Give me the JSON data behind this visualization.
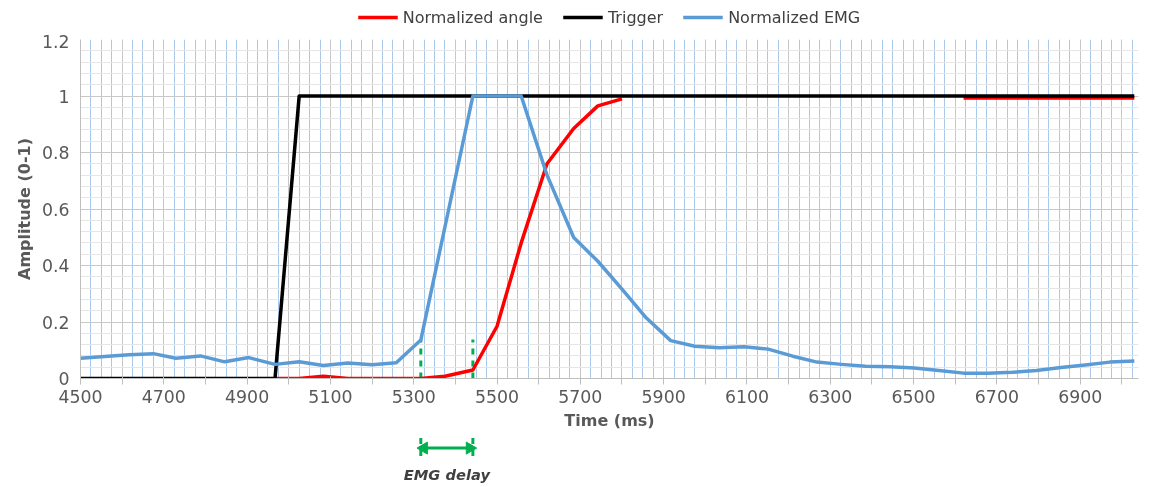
{
  "chart_data": {
    "type": "line",
    "xlabel": "Time (ms)",
    "ylabel": "Amplitude (0-1)",
    "xlim": [
      4500,
      7040
    ],
    "ylim": [
      0,
      1.2
    ],
    "xticks": [
      4500,
      {
        "value": 4600,
        "label": null
      },
      4700,
      {
        "value": 4800,
        "label": null
      },
      4900,
      {
        "value": 5000,
        "label": null
      },
      5100,
      {
        "value": 5200,
        "label": null
      },
      5300,
      {
        "value": 5400,
        "label": null
      },
      5500,
      {
        "value": 5600,
        "label": null
      },
      5700,
      {
        "value": 5800,
        "label": null
      },
      5900,
      {
        "value": 6000,
        "label": null
      },
      6100,
      {
        "value": 6200,
        "label": null
      },
      6300,
      {
        "value": 6400,
        "label": null
      },
      6500,
      {
        "value": 6600,
        "label": null
      },
      6700,
      {
        "value": 6800,
        "label": null
      },
      6900,
      {
        "value": 7000,
        "label": null
      }
    ],
    "yticks": [
      0,
      0.2,
      0.4,
      0.6,
      0.8,
      1,
      1.2
    ],
    "grid": true,
    "legend": "top",
    "line_style": "solid",
    "marker": "none",
    "series": [
      {
        "name": "Normalized angle",
        "color": "#ff0000",
        "x": [
          4967,
          5025,
          5083,
          5142,
          5200,
          5258,
          5317,
          5375,
          5442,
          5500,
          5558,
          5620,
          5684,
          5742,
          5800,
          5858,
          5917,
          6561,
          6620,
          6678,
          6737,
          6795,
          6854,
          6912,
          6971,
          7030
        ],
        "values": [
          0,
          0,
          0.008,
          0,
          0,
          0,
          0,
          0.008,
          0.03,
          0.185,
          0.48,
          0.76,
          0.885,
          0.965,
          0.99,
          null,
          null,
          null,
          0.993,
          0.993,
          0.993,
          0.993,
          0.993,
          0.993,
          0.993,
          0.993
        ]
      },
      {
        "name": "Trigger",
        "color": "#000000",
        "x": [
          4500,
          4967,
          5025,
          7030
        ],
        "values": [
          0,
          0,
          1,
          1
        ]
      },
      {
        "name": "Normalized EMG",
        "color": "#5b9bd5",
        "x": [
          4500,
          4558,
          4617,
          4675,
          4729,
          4788,
          4846,
          4904,
          4967,
          5025,
          5083,
          5142,
          5200,
          5258,
          5317,
          5442,
          5500,
          5558,
          5620,
          5684,
          5742,
          5800,
          5858,
          5917,
          5975,
          6034,
          6093,
          6151,
          6210,
          6268,
          6327,
          6385,
          6444,
          6502,
          6561,
          6620,
          6678,
          6737,
          6795,
          6854,
          6912,
          6971,
          7030
        ],
        "values": [
          0.072,
          0.078,
          0.084,
          0.088,
          0.072,
          0.08,
          0.059,
          0.074,
          0.05,
          0.059,
          0.046,
          0.055,
          0.049,
          0.056,
          0.136,
          1,
          1,
          1,
          0.72,
          0.499,
          0.415,
          0.316,
          0.215,
          0.134,
          0.114,
          0.109,
          0.112,
          0.104,
          0.079,
          0.058,
          0.05,
          0.043,
          0.042,
          0.037,
          0.028,
          0.019,
          0.019,
          0.022,
          0.028,
          0.039,
          0.048,
          0.058,
          0.062
        ]
      }
    ],
    "ref_lines": [
      {
        "axis": "x",
        "value": 5317,
        "label": null,
        "color": "#00b050",
        "line_style": "dashed"
      },
      {
        "axis": "x",
        "value": 5442,
        "label": null,
        "color": "#00b050",
        "line_style": "dashed"
      }
    ],
    "annotations": [
      "EMG delay"
    ]
  }
}
